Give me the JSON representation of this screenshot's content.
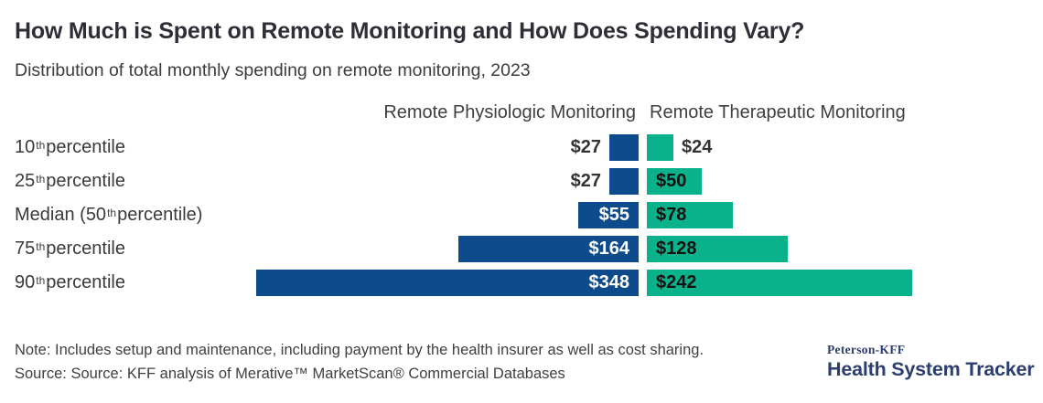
{
  "header": {
    "title": "How Much is Spent on Remote Monitoring and How Does Spending Vary?",
    "subtitle": "Distribution of total monthly spending on remote monitoring, 2023"
  },
  "chart_data": {
    "type": "bar",
    "orientation": "horizontal-diverging",
    "categories": [
      "10th percentile",
      "25th percentile",
      "Median (50th percentile)",
      "75th percentile",
      "90th percentile"
    ],
    "category_parts": [
      {
        "prefix": "10",
        "sup": "th",
        "suffix": " percentile"
      },
      {
        "prefix": "25",
        "sup": "th",
        "suffix": " percentile"
      },
      {
        "prefix": "Median (50",
        "sup": "th",
        "suffix": " percentile)"
      },
      {
        "prefix": "75",
        "sup": "th",
        "suffix": " percentile"
      },
      {
        "prefix": "90",
        "sup": "th",
        "suffix": " percentile"
      }
    ],
    "series": [
      {
        "name": "Remote Physiologic Monitoring",
        "color": "#0e4b8c",
        "values": [
          27,
          27,
          55,
          164,
          348
        ],
        "labels": [
          "$27",
          "$27",
          "$55",
          "$164",
          "$348"
        ]
      },
      {
        "name": "Remote Therapeutic Monitoring",
        "color": "#09b28a",
        "values": [
          24,
          50,
          78,
          128,
          242
        ],
        "labels": [
          "$24",
          "$50",
          "$78",
          "$128",
          "$242"
        ]
      }
    ],
    "value_prefix": "$",
    "legend_position": "column-headers",
    "grid": false,
    "axis_hidden": true
  },
  "footer": {
    "note": "Note: Includes setup and maintenance, including payment by the health insurer as well as cost sharing.",
    "source": "Source: Source: KFF analysis of Merative™ MarketScan® Commercial Databases",
    "logo": {
      "top": "Peterson-KFF",
      "bottom": "Health System Tracker"
    }
  },
  "colors": {
    "physiologic_blue": "#0e4b8c",
    "therapeutic_green": "#09b28a",
    "logo_navy": "#2b3e6f",
    "title_text": "#2e2e36",
    "body_text": "#3c3c3c"
  }
}
